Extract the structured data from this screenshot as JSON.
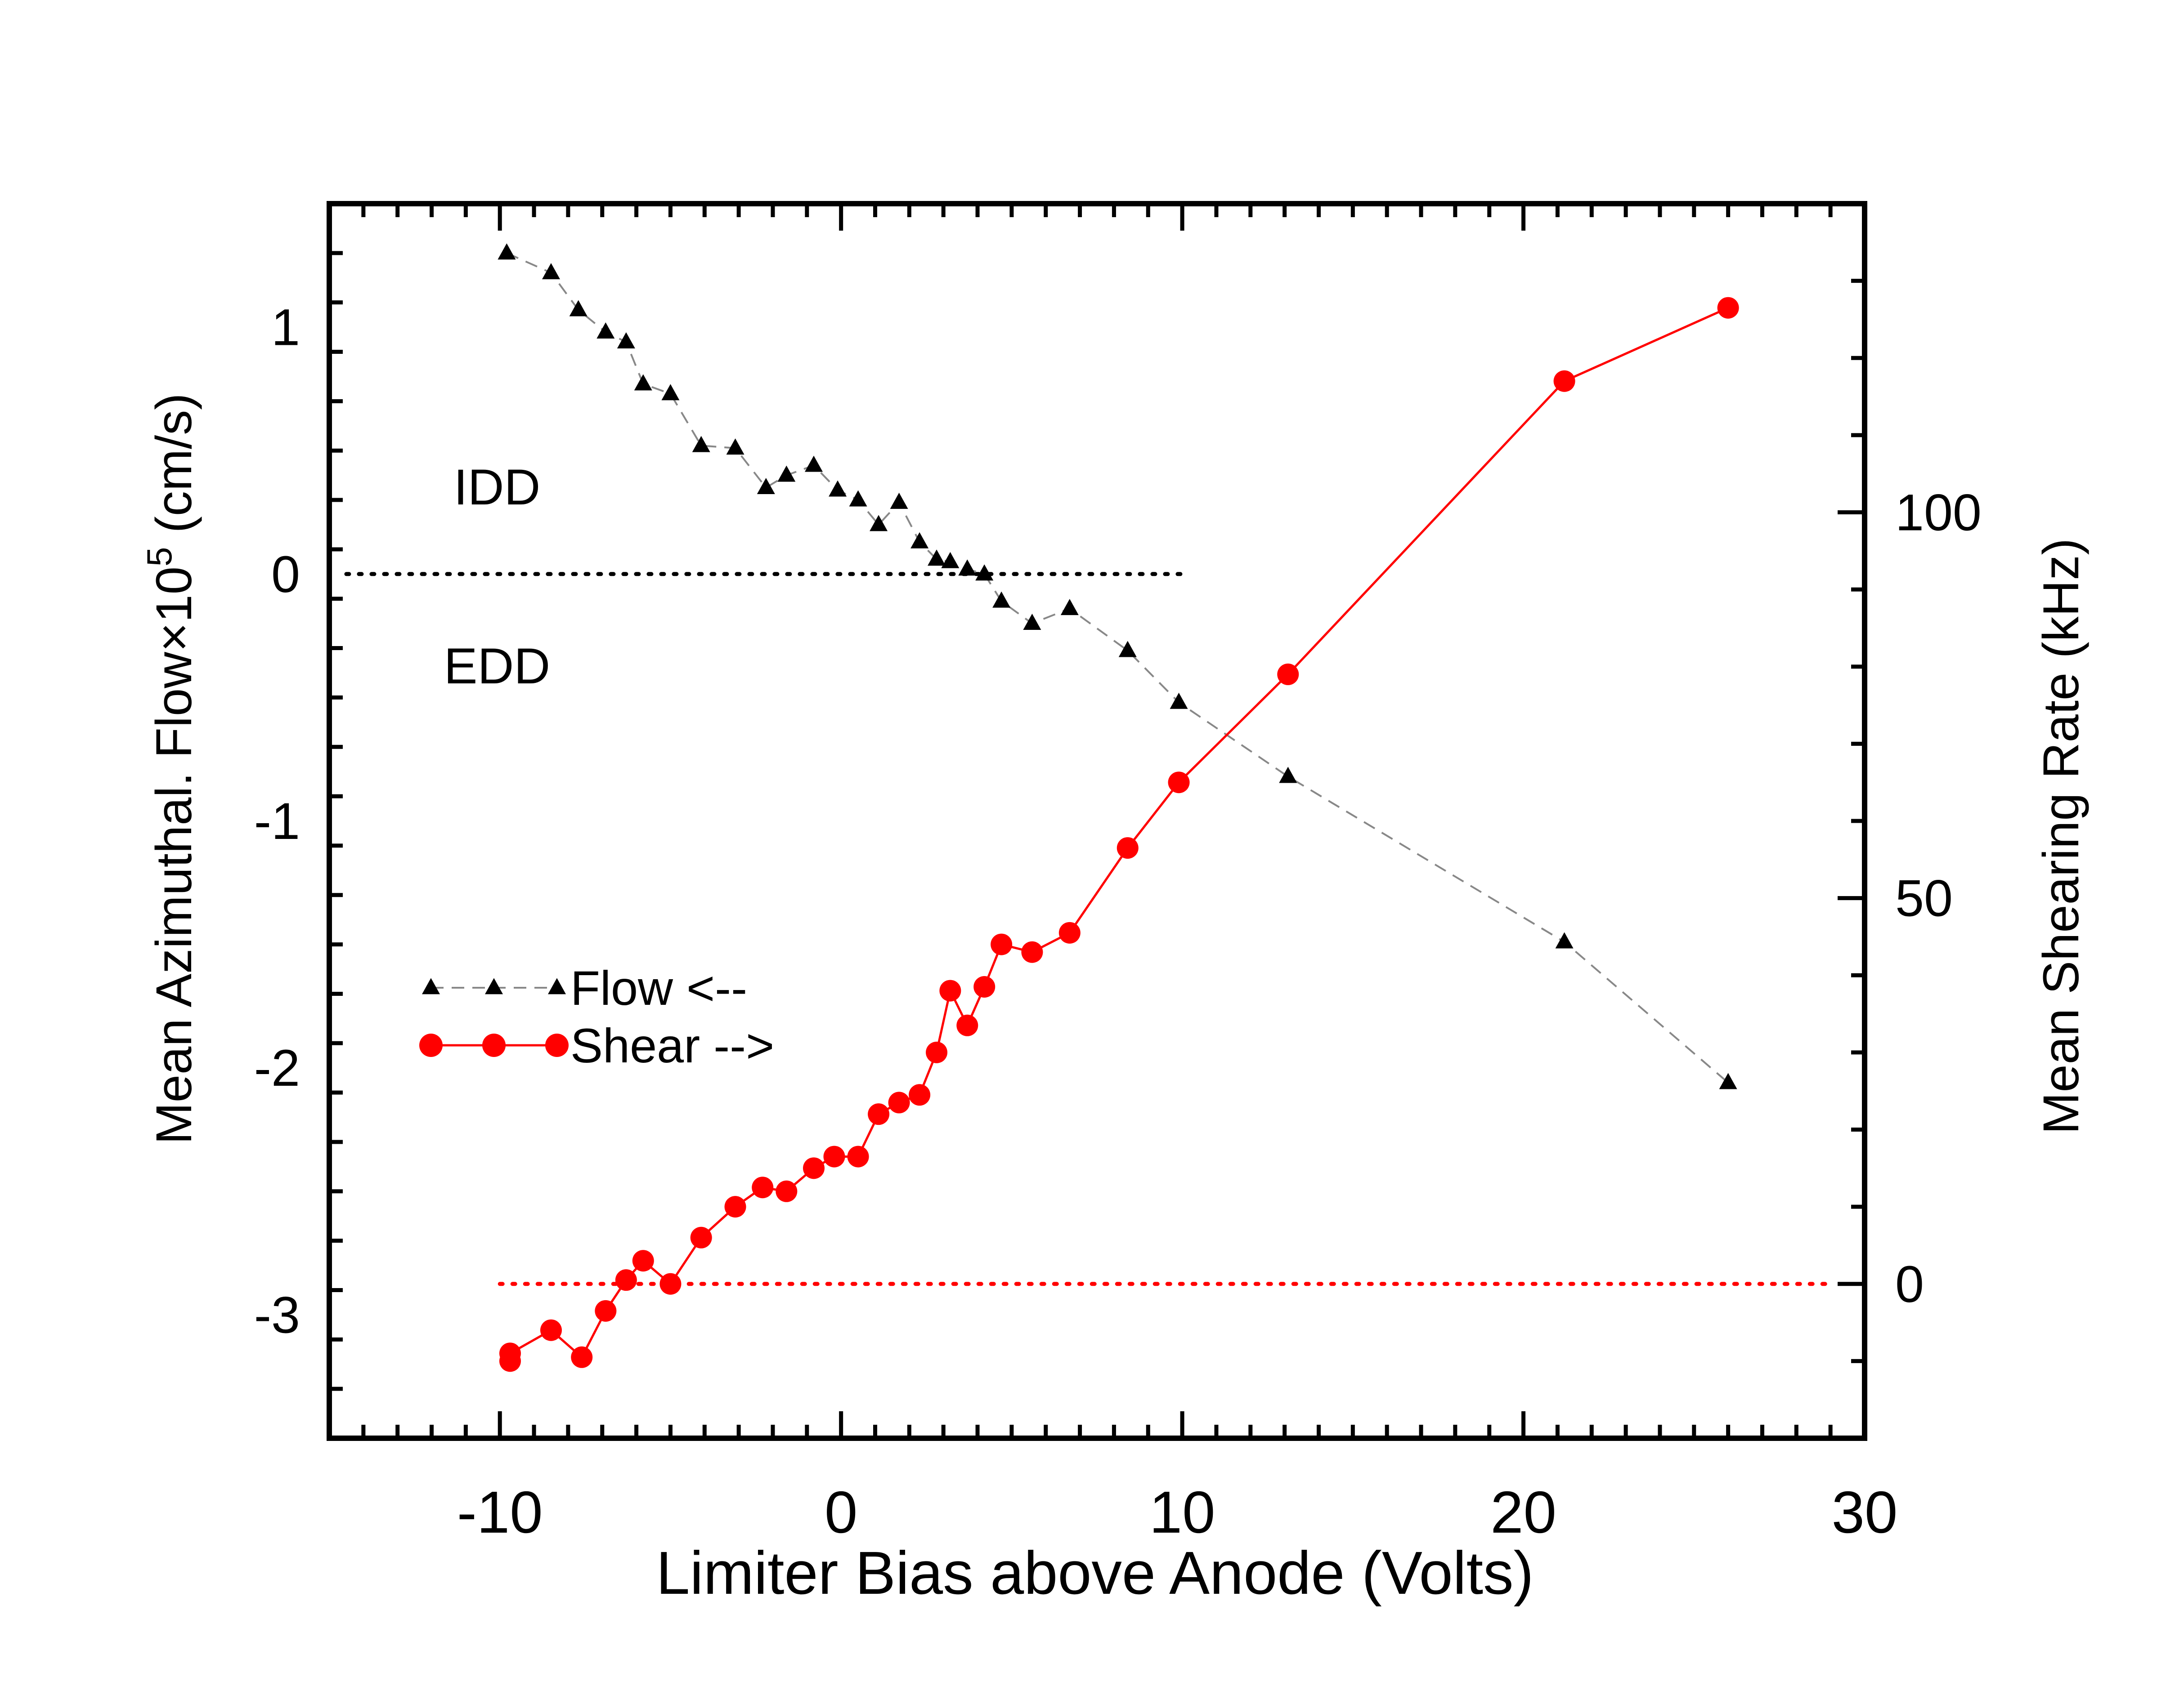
{
  "chart_data": {
    "type": "scatter",
    "xlabel": "Limiter Bias above Anode (Volts)",
    "ylabel_left_prefix": "Mean Azimuthal. Flow×10",
    "ylabel_left_exponent": "5",
    "ylabel_left_suffix": " (cm/s)",
    "ylabel_right": "Mean Shearing Rate (kHz)",
    "xlim": [
      -15,
      30
    ],
    "ylim_left": [
      -3.5,
      1.5
    ],
    "ylim_right": [
      -20,
      140
    ],
    "x_ticks": [
      -10,
      0,
      10,
      20,
      30
    ],
    "x_tick_labels": [
      "-10",
      "0",
      "10",
      "20",
      "30"
    ],
    "y_left_ticks": [
      1,
      0,
      -1,
      -2,
      -3
    ],
    "y_left_tick_labels": [
      "1",
      "0",
      "-1",
      "-2",
      "-3"
    ],
    "y_right_ticks": [
      100,
      50,
      0
    ],
    "y_right_tick_labels": [
      "100",
      "50",
      "0"
    ],
    "region_labels": {
      "upper": "IDD",
      "lower": "EDD"
    },
    "reference_lines": [
      {
        "axis": "left",
        "y": 0,
        "x_range": [
          -14.5,
          10
        ],
        "color": "#000000",
        "style": "dotted"
      },
      {
        "axis": "right",
        "y": 0,
        "x_range": [
          -10,
          29
        ],
        "color": "#ff0000",
        "style": "dotted"
      }
    ],
    "legend": {
      "placement": "left-middle"
    },
    "series": [
      {
        "name": "Flow <--",
        "axis": "left",
        "marker": "triangle",
        "line_style": "dashed",
        "color": "#000000",
        "line_color": "#888888",
        "points": [
          [
            -9.8,
            1.3
          ],
          [
            -8.5,
            1.22
          ],
          [
            -7.7,
            1.07
          ],
          [
            -6.9,
            0.98
          ],
          [
            -6.3,
            0.94
          ],
          [
            -5.8,
            0.77
          ],
          [
            -5.0,
            0.73
          ],
          [
            -4.1,
            0.52
          ],
          [
            -3.1,
            0.51
          ],
          [
            -2.2,
            0.35
          ],
          [
            -1.6,
            0.4
          ],
          [
            -0.8,
            0.44
          ],
          [
            -0.1,
            0.34
          ],
          [
            0.5,
            0.3
          ],
          [
            1.1,
            0.2
          ],
          [
            1.7,
            0.29
          ],
          [
            2.3,
            0.13
          ],
          [
            2.8,
            0.06
          ],
          [
            3.2,
            0.05
          ],
          [
            3.7,
            0.02
          ],
          [
            4.2,
            0.0
          ],
          [
            4.7,
            -0.11
          ],
          [
            5.6,
            -0.2
          ],
          [
            6.7,
            -0.14
          ],
          [
            8.4,
            -0.31
          ],
          [
            9.9,
            -0.52
          ],
          [
            13.1,
            -0.82
          ],
          [
            21.2,
            -1.49
          ],
          [
            26.0,
            -2.06
          ]
        ]
      },
      {
        "name": "Shear -->",
        "axis": "right",
        "marker": "circle",
        "line_style": "solid",
        "color": "#ff0000",
        "line_color": "#ff0000",
        "points": [
          [
            -9.7,
            -10.0
          ],
          [
            -9.7,
            -9.0
          ],
          [
            -8.5,
            -6.0
          ],
          [
            -7.6,
            -9.5
          ],
          [
            -6.9,
            -3.5
          ],
          [
            -6.3,
            0.5
          ],
          [
            -5.8,
            3.0
          ],
          [
            -5.0,
            0.0
          ],
          [
            -4.1,
            6.0
          ],
          [
            -3.1,
            10.0
          ],
          [
            -2.3,
            12.5
          ],
          [
            -1.6,
            12.0
          ],
          [
            -0.8,
            15.0
          ],
          [
            -0.2,
            16.5
          ],
          [
            0.5,
            16.5
          ],
          [
            1.1,
            22.0
          ],
          [
            1.7,
            23.5
          ],
          [
            2.3,
            24.5
          ],
          [
            2.8,
            30.0
          ],
          [
            3.2,
            38.0
          ],
          [
            3.7,
            33.5
          ],
          [
            4.2,
            38.5
          ],
          [
            4.7,
            44.0
          ],
          [
            5.6,
            43.0
          ],
          [
            6.7,
            45.5
          ],
          [
            8.4,
            56.5
          ],
          [
            9.9,
            65.0
          ],
          [
            13.1,
            79.0
          ],
          [
            21.2,
            117.0
          ],
          [
            26.0,
            126.5
          ]
        ]
      }
    ]
  },
  "colors": {
    "flow": "#000000",
    "flow_line": "#888888",
    "shear": "#ff0000",
    "axes": "#000000"
  }
}
